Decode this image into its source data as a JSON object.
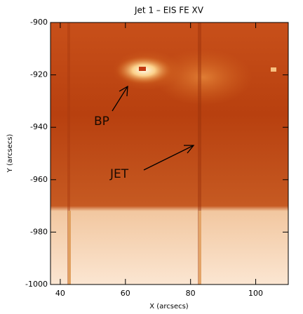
{
  "chart_data": {
    "type": "image",
    "title": "Jet 1 – EIS FE XV",
    "x_label": "X (arcsecs)",
    "y_label": "Y (arcsecs)",
    "xlim": [
      37,
      110
    ],
    "xticks": [
      40,
      60,
      80,
      100
    ],
    "ylim": [
      -1000,
      -900
    ],
    "yticks": [
      -1000,
      -980,
      -960,
      -940,
      -920,
      -900
    ],
    "annotations": [
      "BP",
      "JET"
    ]
  }
}
